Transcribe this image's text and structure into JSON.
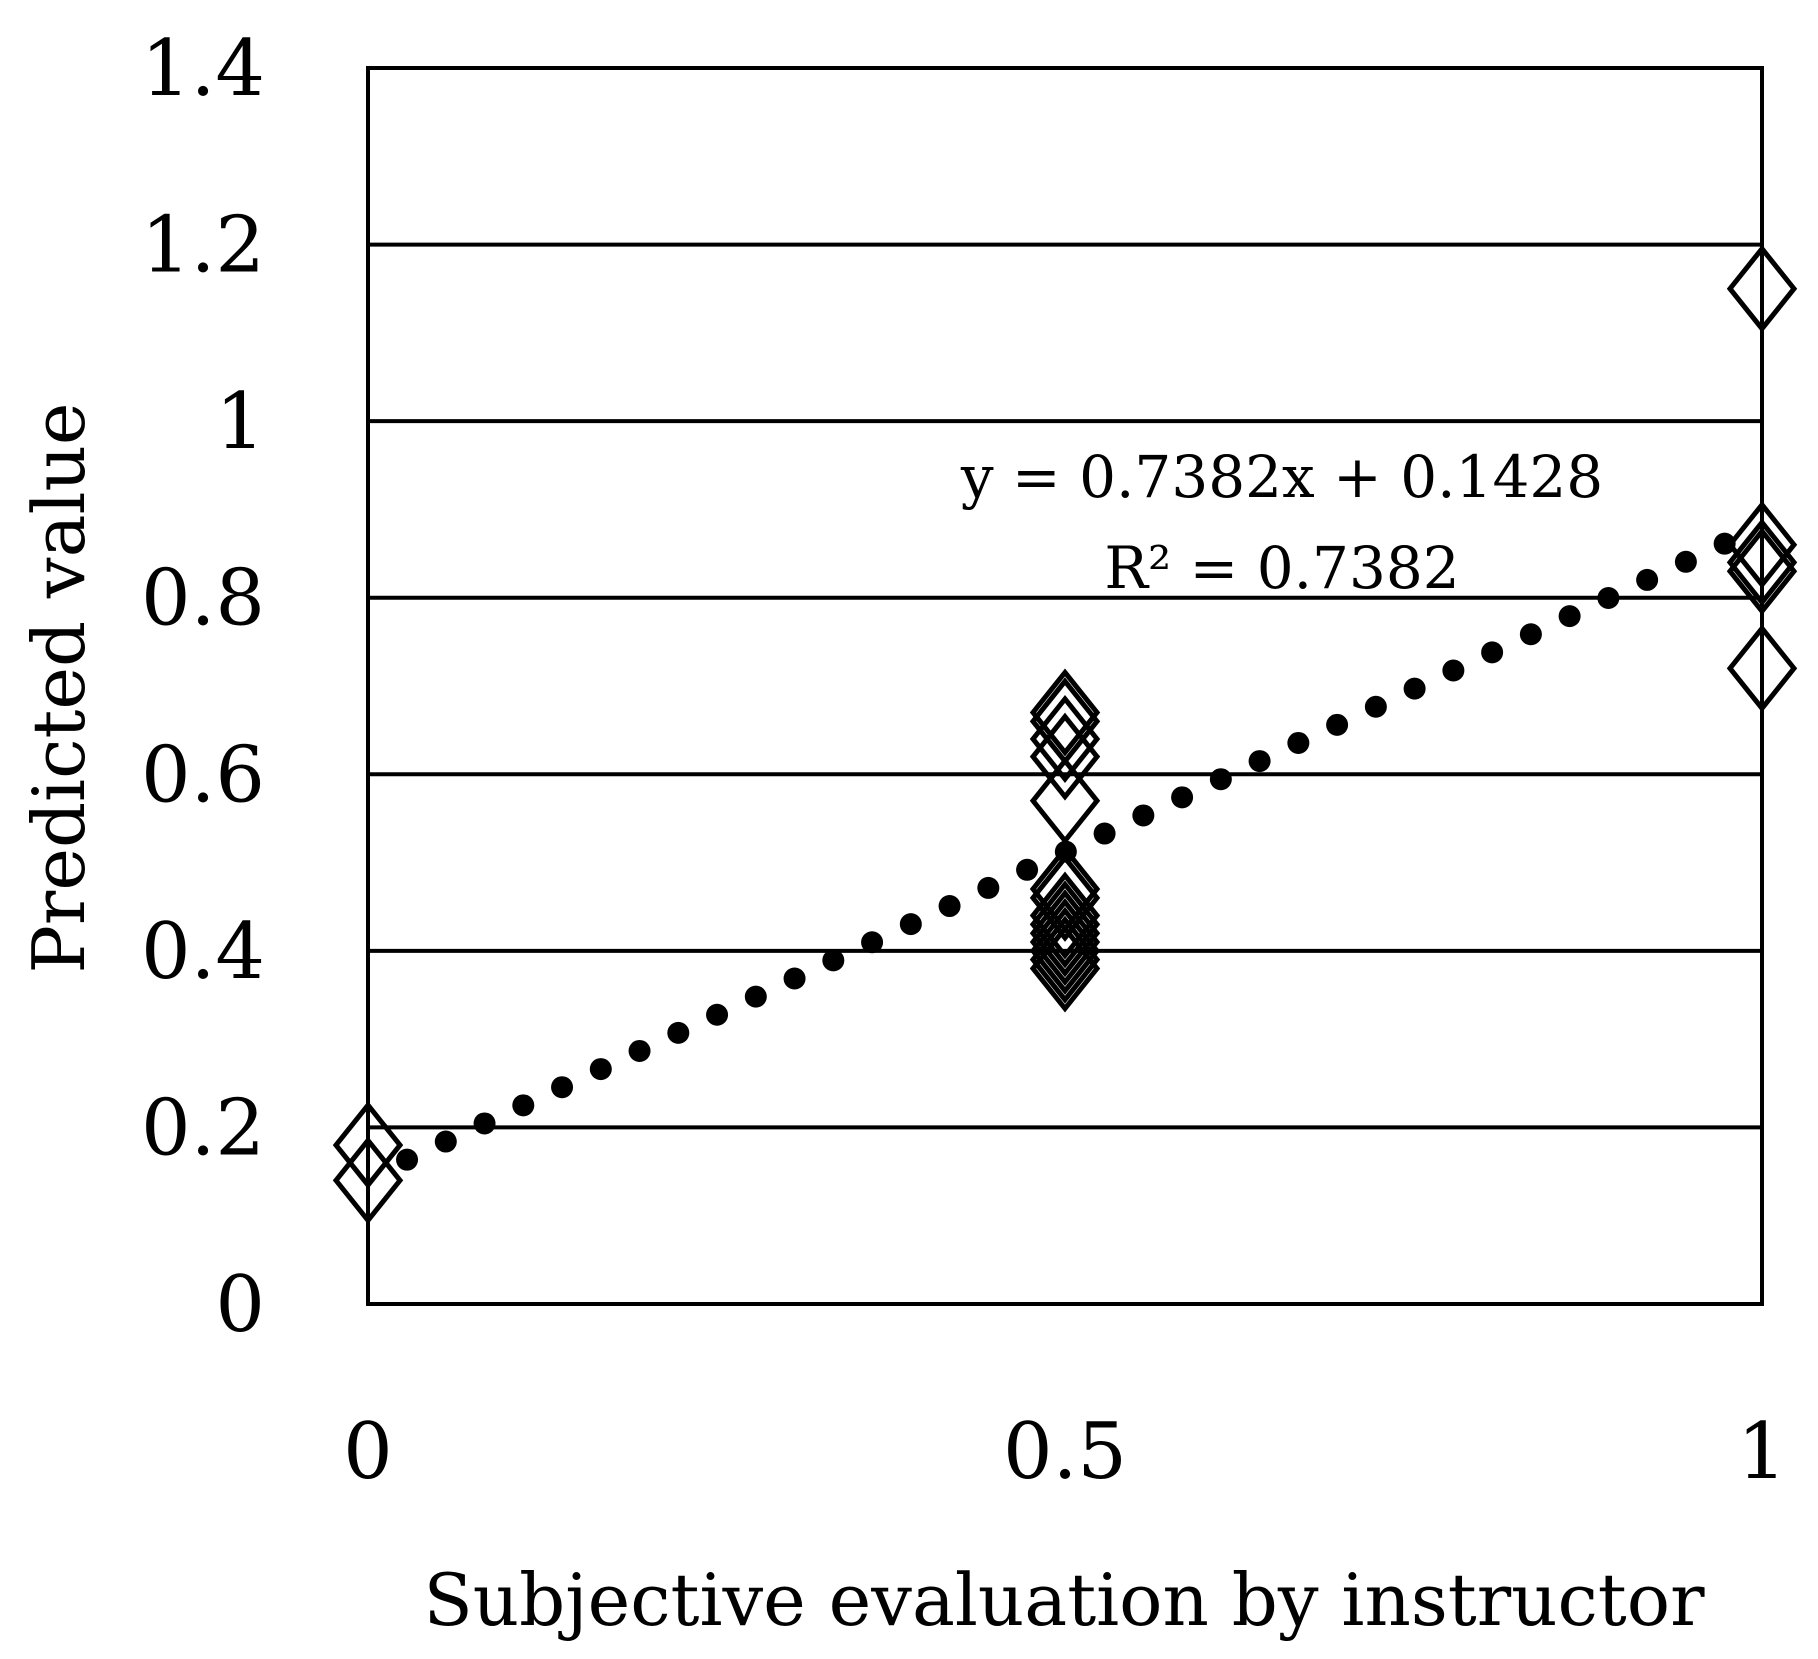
{
  "chart_data": {
    "type": "scatter",
    "xlabel": "Subjective evaluation by instructor",
    "ylabel": "Predicted value",
    "xlim": [
      0,
      1
    ],
    "ylim": [
      0,
      1.4
    ],
    "xticks": [
      0,
      0.5,
      1
    ],
    "xtick_labels": [
      "0",
      "0.5",
      "1"
    ],
    "yticks": [
      0,
      0.2,
      0.4,
      0.6,
      0.8,
      1.0,
      1.2,
      1.4
    ],
    "ytick_labels": [
      "0",
      "0.2",
      "0.4",
      "0.6",
      "0.8",
      "1",
      "1.2",
      "1.4"
    ],
    "grid": "horizontal",
    "marker": "diamond-open",
    "series": [
      {
        "points": [
          {
            "x": 0,
            "y": 0.18
          },
          {
            "x": 0,
            "y": 0.14
          },
          {
            "x": 0.5,
            "y": 0.67
          },
          {
            "x": 0.5,
            "y": 0.66
          },
          {
            "x": 0.5,
            "y": 0.64
          },
          {
            "x": 0.5,
            "y": 0.62
          },
          {
            "x": 0.5,
            "y": 0.57
          },
          {
            "x": 0.5,
            "y": 0.47
          },
          {
            "x": 0.5,
            "y": 0.46
          },
          {
            "x": 0.5,
            "y": 0.44
          },
          {
            "x": 0.5,
            "y": 0.43
          },
          {
            "x": 0.5,
            "y": 0.42
          },
          {
            "x": 0.5,
            "y": 0.41
          },
          {
            "x": 0.5,
            "y": 0.4
          },
          {
            "x": 0.5,
            "y": 0.39
          },
          {
            "x": 0.5,
            "y": 0.38
          },
          {
            "x": 1,
            "y": 1.15
          },
          {
            "x": 1,
            "y": 0.86
          },
          {
            "x": 1,
            "y": 0.84
          },
          {
            "x": 1,
            "y": 0.83
          },
          {
            "x": 1,
            "y": 0.72
          }
        ]
      }
    ],
    "trendline": {
      "type": "linear",
      "style": "dotted",
      "slope": 0.7382,
      "intercept": 0.1428,
      "equation_label": "y = 0.7382x + 0.1428",
      "r2_label": "R² = 0.7382"
    }
  }
}
